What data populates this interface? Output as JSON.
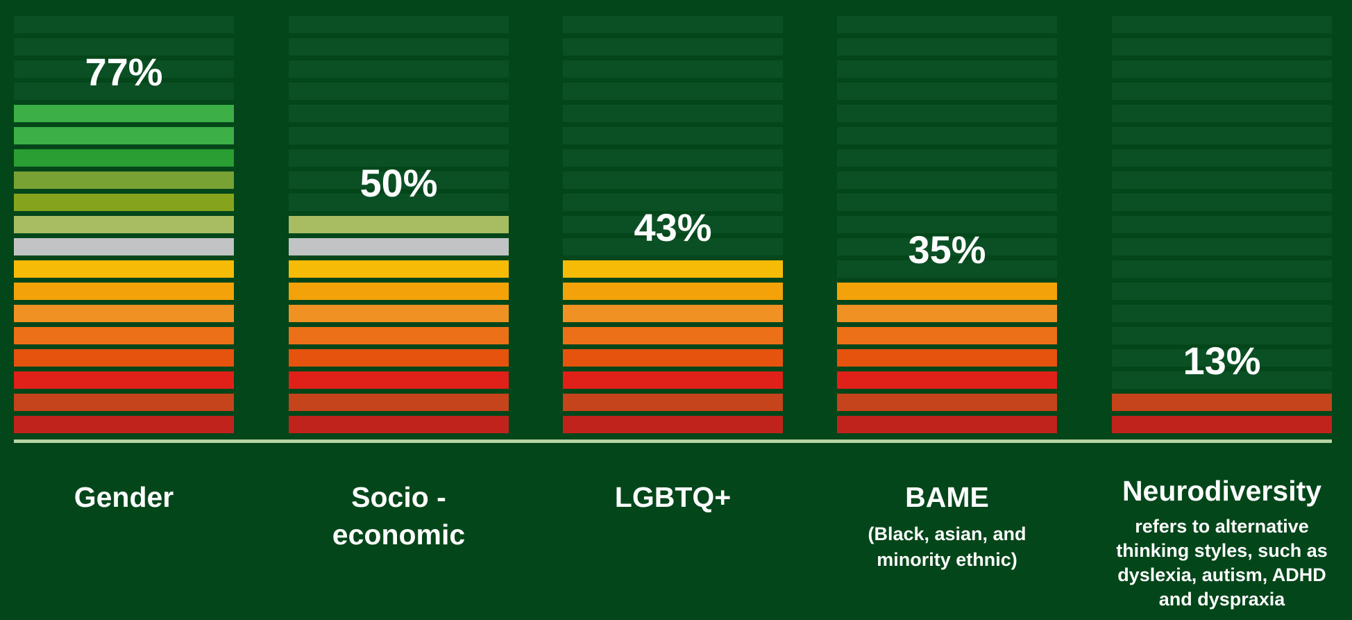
{
  "chart_data": {
    "type": "bar",
    "title": "",
    "xlabel": "",
    "ylabel": "",
    "ylim": [
      0,
      100
    ],
    "categories": [
      "Gender",
      "Socio - economic",
      "LGBTQ+",
      "BAME",
      "Neurodiversity"
    ],
    "values": [
      77,
      50,
      43,
      35,
      13
    ],
    "value_labels": [
      "77%",
      "50%",
      "43%",
      "35%",
      "13%"
    ],
    "category_descriptions": [
      "",
      "",
      "",
      "(Black, asian, and minority ethnic)",
      "refers to alternative thinking styles, such as dyslexia, autism, ADHD and dyspraxia"
    ],
    "grid": false,
    "segment_colors": [
      "#c0221c",
      "#c5441c",
      "#e0211a",
      "#e6530f",
      "#ec7018",
      "#ef9223",
      "#f4a20a",
      "#f6bb06",
      "#c1c3c4",
      "#a8bd62",
      "#85a31c",
      "#78a233",
      "#2a9e33",
      "#3daf47"
    ]
  },
  "colors": {
    "background": "#02461a",
    "empty_segment": "#0b4f24",
    "baseline": "#b7d3a6",
    "text": "#ffffff"
  }
}
